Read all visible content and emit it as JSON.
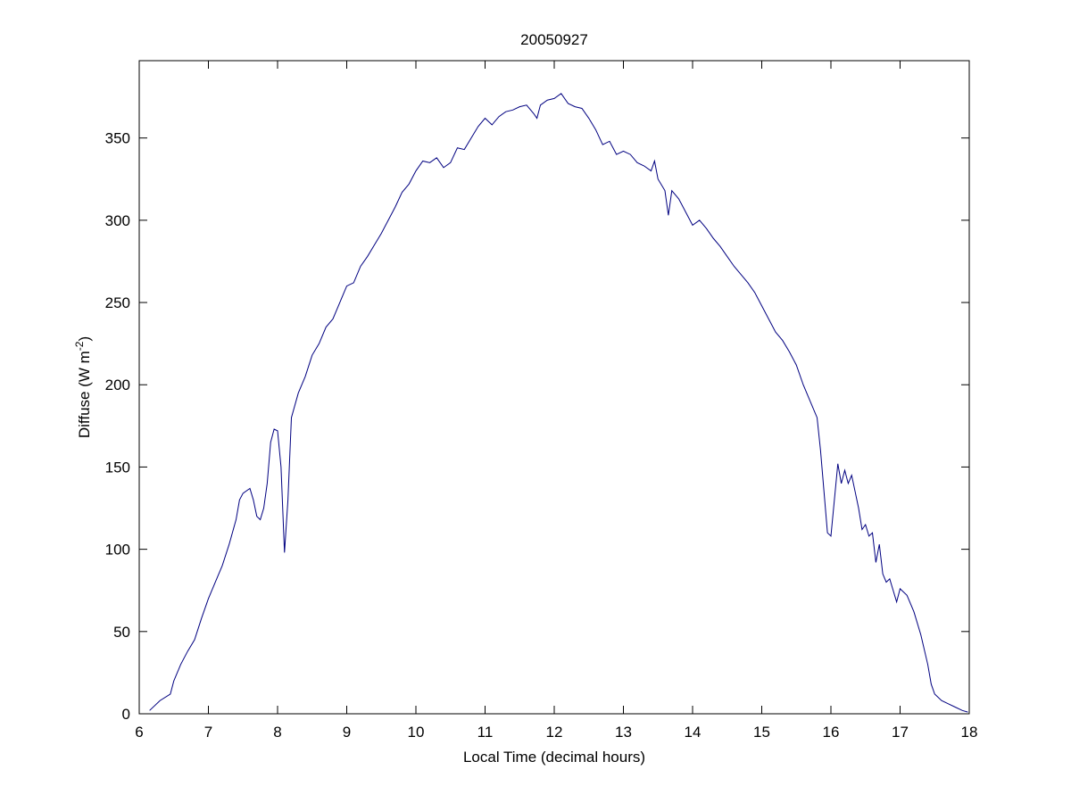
{
  "chart_data": {
    "type": "line",
    "title": "20050927",
    "xlabel": "Local Time (decimal hours)",
    "ylabel": {
      "text": "Diffuse (W m",
      "superscript": "-2",
      "suffix": ")"
    },
    "xlim": [
      6,
      18
    ],
    "xticks": [
      6,
      7,
      8,
      9,
      10,
      11,
      12,
      13,
      14,
      15,
      16,
      17,
      18
    ],
    "ylim": [
      0,
      397
    ],
    "yticks": [
      0,
      50,
      100,
      150,
      200,
      250,
      300,
      350
    ],
    "grid": false,
    "series": [
      {
        "color": "#000080",
        "x": [
          6.15,
          6.3,
          6.45,
          6.5,
          6.6,
          6.7,
          6.8,
          6.9,
          7.0,
          7.1,
          7.2,
          7.3,
          7.4,
          7.45,
          7.5,
          7.6,
          7.65,
          7.7,
          7.75,
          7.8,
          7.85,
          7.9,
          7.95,
          8.0,
          8.05,
          8.1,
          8.15,
          8.2,
          8.3,
          8.4,
          8.5,
          8.6,
          8.7,
          8.8,
          8.9,
          9.0,
          9.1,
          9.2,
          9.3,
          9.4,
          9.5,
          9.6,
          9.7,
          9.8,
          9.9,
          10.0,
          10.1,
          10.2,
          10.3,
          10.4,
          10.5,
          10.6,
          10.7,
          10.8,
          10.9,
          11.0,
          11.1,
          11.2,
          11.3,
          11.4,
          11.5,
          11.6,
          11.7,
          11.75,
          11.8,
          11.9,
          12.0,
          12.1,
          12.2,
          12.3,
          12.4,
          12.5,
          12.6,
          12.7,
          12.8,
          12.9,
          13.0,
          13.1,
          13.2,
          13.3,
          13.4,
          13.45,
          13.5,
          13.6,
          13.65,
          13.7,
          13.8,
          13.9,
          14.0,
          14.1,
          14.2,
          14.3,
          14.4,
          14.5,
          14.6,
          14.7,
          14.8,
          14.9,
          15.0,
          15.1,
          15.2,
          15.3,
          15.4,
          15.5,
          15.6,
          15.7,
          15.8,
          15.85,
          15.9,
          15.95,
          16.0,
          16.05,
          16.1,
          16.15,
          16.2,
          16.25,
          16.3,
          16.35,
          16.4,
          16.45,
          16.5,
          16.55,
          16.6,
          16.65,
          16.7,
          16.75,
          16.8,
          16.85,
          16.9,
          16.95,
          17.0,
          17.1,
          17.2,
          17.3,
          17.4,
          17.45,
          17.5,
          17.6,
          17.7,
          17.8,
          17.9,
          17.98
        ],
        "values": [
          2,
          8,
          12,
          20,
          30,
          38,
          45,
          58,
          70,
          80,
          90,
          103,
          118,
          130,
          134,
          137,
          130,
          120,
          118,
          125,
          140,
          165,
          173,
          172,
          150,
          98,
          130,
          180,
          195,
          205,
          218,
          225,
          235,
          240,
          250,
          260,
          262,
          272,
          278,
          285,
          292,
          300,
          308,
          317,
          322,
          330,
          336,
          335,
          338,
          332,
          335,
          344,
          343,
          350,
          357,
          362,
          358,
          363,
          366,
          367,
          369,
          370,
          365,
          362,
          370,
          373,
          374,
          377,
          371,
          369,
          368,
          362,
          355,
          346,
          348,
          340,
          342,
          340,
          335,
          333,
          330,
          336,
          325,
          318,
          303,
          318,
          313,
          305,
          297,
          300,
          295,
          289,
          284,
          278,
          272,
          267,
          262,
          256,
          248,
          240,
          232,
          227,
          220,
          212,
          200,
          190,
          180,
          160,
          135,
          110,
          108,
          130,
          152,
          140,
          148,
          140,
          145,
          135,
          125,
          112,
          115,
          108,
          110,
          92,
          103,
          85,
          80,
          82,
          75,
          68,
          76,
          72,
          62,
          48,
          30,
          18,
          12,
          8,
          6,
          4,
          2,
          1
        ]
      }
    ]
  }
}
